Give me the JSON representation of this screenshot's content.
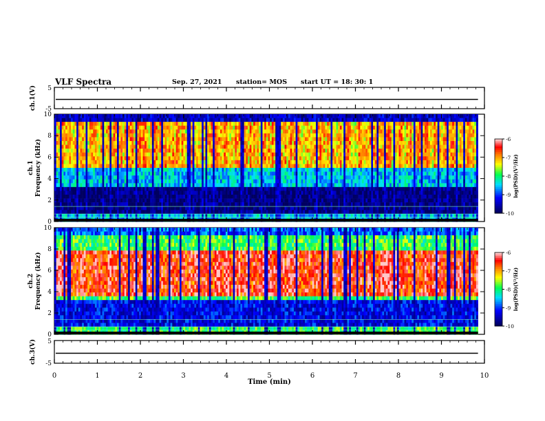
{
  "header": {
    "title": "VLF Spectra",
    "date": "Sep. 27, 2021",
    "station": "station= MOS",
    "start": "start  UT  =   18: 30: 1"
  },
  "chart_data": [
    {
      "type": "line",
      "name": "ch1-waveform",
      "ylabel": "ch.1(V)",
      "ylim": [
        -5,
        5
      ],
      "yticks": [
        "5",
        "-5"
      ],
      "x": [
        0,
        9.85
      ],
      "values": [
        0,
        0
      ]
    },
    {
      "type": "heatmap",
      "name": "ch1-spectrogram",
      "ylabel": "ch.1\nFrequency (kHz)",
      "ylabel_line1": "ch.1",
      "ylabel_line2": "Frequency (kHz)",
      "xlim": [
        0,
        10
      ],
      "ylim": [
        0,
        10
      ],
      "yticks": [
        "0",
        "2",
        "4",
        "6",
        "8",
        "10"
      ],
      "data_extent_min": 9.85,
      "colorbar": {
        "label": "log(PSD)(V²/Hz)",
        "range": [
          -10,
          -6
        ],
        "ticks": [
          "-6",
          "-7",
          "-8",
          "-9",
          "-10"
        ]
      }
    },
    {
      "type": "heatmap",
      "name": "ch2-spectrogram",
      "ylabel": "ch.2\nFrequency (kHz)",
      "ylabel_line1": "ch.2",
      "ylabel_line2": "Frequency (kHz)",
      "xlim": [
        0,
        10
      ],
      "ylim": [
        0,
        10
      ],
      "yticks": [
        "0",
        "2",
        "4",
        "6",
        "8",
        "10"
      ],
      "data_extent_min": 9.85,
      "colorbar": {
        "label": "log(PSD)(V²/Hz)",
        "range": [
          -10,
          -6
        ],
        "ticks": [
          "-6",
          "-7",
          "-8",
          "-9",
          "-10"
        ]
      }
    },
    {
      "type": "line",
      "name": "ch3-waveform",
      "ylabel": "ch.3(V)",
      "ylim": [
        -5,
        5
      ],
      "yticks": [
        "5",
        "-5"
      ],
      "x": [
        0,
        9.85
      ],
      "values": [
        0,
        0
      ],
      "xlabel": "Time (min)",
      "xlim": [
        0,
        10
      ],
      "xticks": [
        "0",
        "1",
        "2",
        "3",
        "4",
        "5",
        "6",
        "7",
        "8",
        "9",
        "10"
      ]
    }
  ]
}
